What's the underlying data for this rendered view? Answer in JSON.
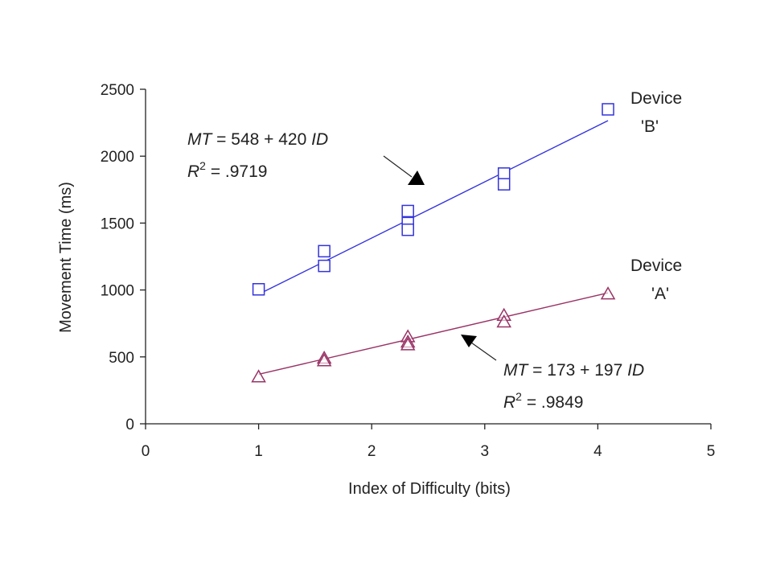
{
  "chart_data": {
    "type": "scatter",
    "xlabel": "Index of Difficulty (bits)",
    "ylabel": "Movement Time (ms)",
    "xlim": [
      0,
      5
    ],
    "ylim": [
      0,
      2500
    ],
    "x_ticks": [
      0,
      1,
      2,
      3,
      4,
      5
    ],
    "y_ticks": [
      0,
      500,
      1000,
      1500,
      2000,
      2500
    ],
    "grid": false,
    "series": [
      {
        "name": "Device 'B'",
        "marker": "square",
        "color": "#3333dd",
        "points": [
          [
            1.0,
            1005
          ],
          [
            1.58,
            1290
          ],
          [
            1.58,
            1180
          ],
          [
            2.32,
            1590
          ],
          [
            2.32,
            1500
          ],
          [
            2.32,
            1450
          ],
          [
            3.17,
            1870
          ],
          [
            3.17,
            1790
          ],
          [
            4.09,
            2350
          ]
        ],
        "fit": {
          "intercept": 548,
          "slope": 420,
          "x_range": [
            1.0,
            4.09
          ]
        }
      },
      {
        "name": "Device 'A'",
        "marker": "triangle",
        "color": "#993366",
        "points": [
          [
            1.0,
            350
          ],
          [
            1.58,
            490
          ],
          [
            1.58,
            470
          ],
          [
            2.32,
            650
          ],
          [
            2.32,
            610
          ],
          [
            2.32,
            590
          ],
          [
            3.17,
            810
          ],
          [
            3.17,
            760
          ],
          [
            4.09,
            970
          ]
        ],
        "fit": {
          "intercept": 173,
          "slope": 197,
          "x_range": [
            1.0,
            4.09
          ]
        }
      }
    ],
    "labels": {
      "device_b": [
        "Device",
        "'B'"
      ],
      "device_a": [
        "Device",
        "'A'"
      ]
    },
    "annotations": [
      {
        "id": "eq-b",
        "mt_label": "MT",
        "equation": "= 548 + 420",
        "id_label": "ID",
        "r_label": "R",
        "r_exp": "2",
        "r_value": "= .9719"
      },
      {
        "id": "eq-a",
        "mt_label": "MT",
        "equation": "= 173 + 197",
        "id_label": "ID",
        "r_label": "R",
        "r_exp": "2",
        "r_value": "= .9849"
      }
    ]
  }
}
